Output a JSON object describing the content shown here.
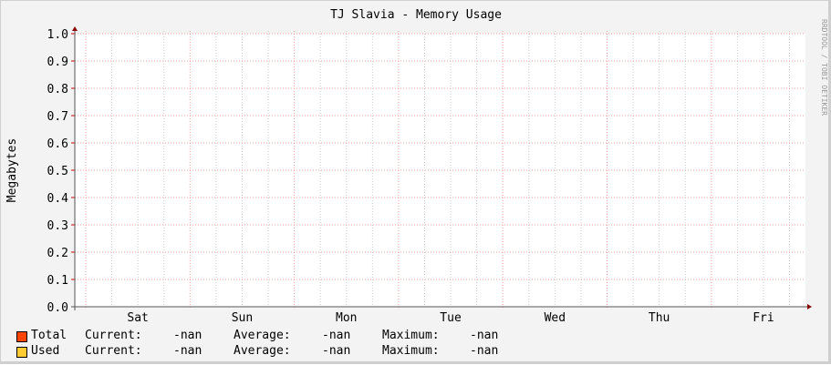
{
  "chart_data": {
    "type": "area",
    "title": "TJ Slavia - Memory Usage",
    "ylabel": "Megabytes",
    "xlabel": "",
    "ylim": [
      0,
      1.0
    ],
    "yticks": [
      "0.0",
      "0.1",
      "0.2",
      "0.3",
      "0.4",
      "0.5",
      "0.6",
      "0.7",
      "0.8",
      "0.9",
      "1.0"
    ],
    "xticks": [
      "Sat",
      "Sun",
      "Mon",
      "Tue",
      "Wed",
      "Thu",
      "Fri"
    ],
    "grid": true,
    "series": [
      {
        "name": "Total",
        "color": "#ff4400",
        "values": []
      },
      {
        "name": "Used",
        "color": "#ffcc33",
        "values": []
      }
    ],
    "watermark": "RRDTOOL / TOBI OETIKER"
  },
  "legend": [
    {
      "name": "Total",
      "current_label": "Current:",
      "current": "-nan",
      "average_label": "Average:",
      "average": "-nan",
      "maximum_label": "Maximum:",
      "maximum": "-nan"
    },
    {
      "name": "Used",
      "current_label": "Current:",
      "current": "-nan",
      "average_label": "Average:",
      "average": "-nan",
      "maximum_label": "Maximum:",
      "maximum": "-nan"
    }
  ]
}
